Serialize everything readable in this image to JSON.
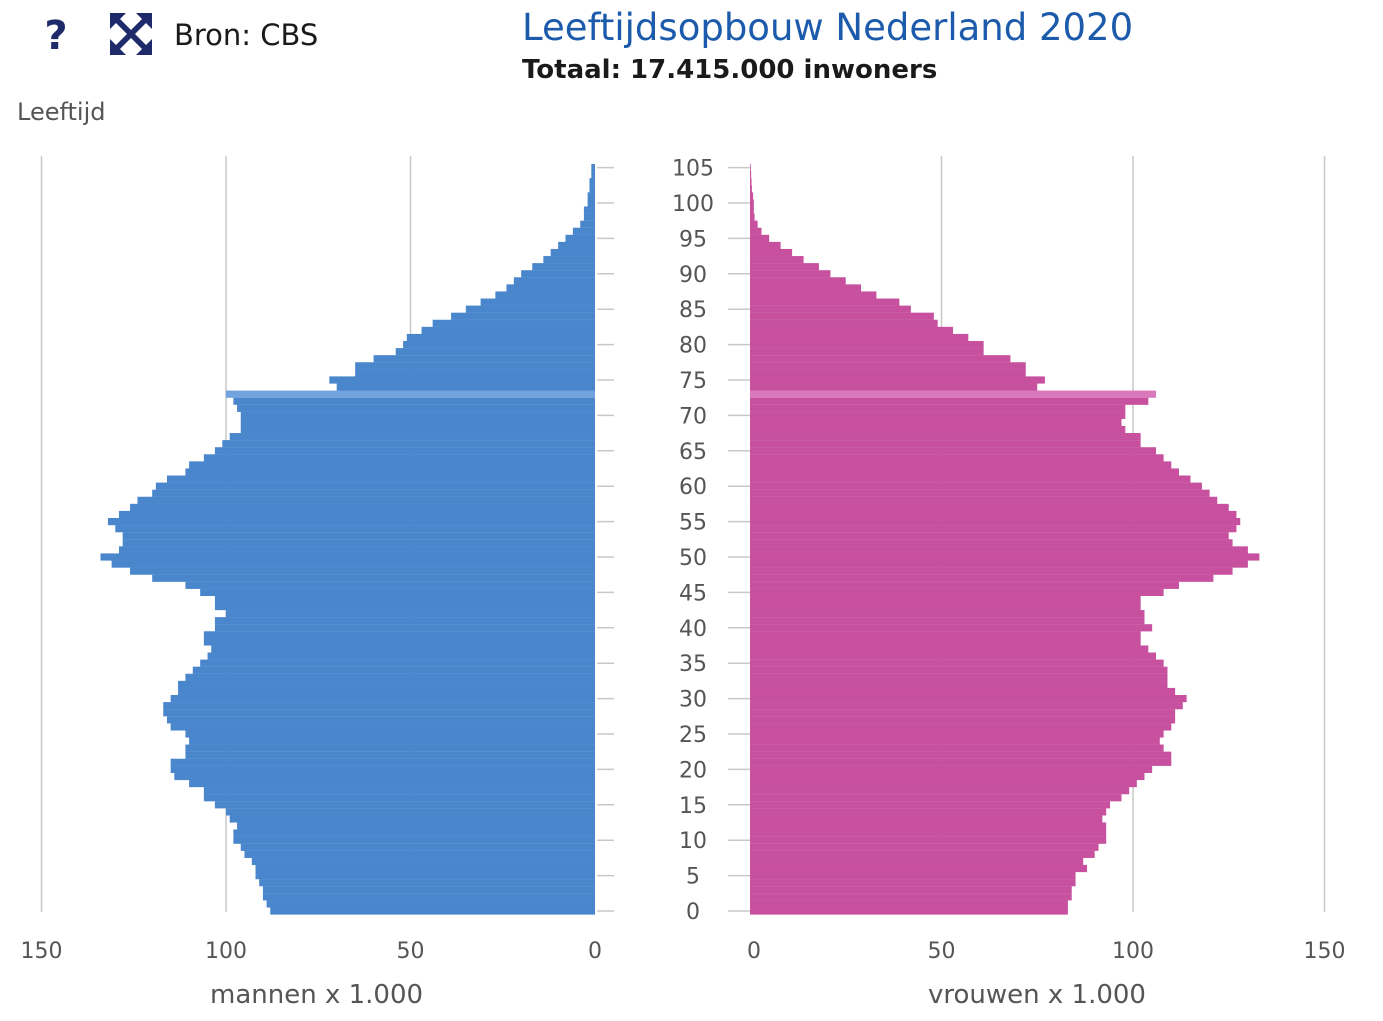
{
  "header": {
    "help_label": "?",
    "expand_icon": "expand-arrows-icon",
    "source": "Bron: CBS",
    "title": "Leeftijdsopbouw Nederland 2020",
    "subtitle": "Totaal: 17.415.000 inwoners"
  },
  "colors": {
    "men": "#4a86cc",
    "men_highlight": "#72a3df",
    "women": "#c7519f",
    "women_highlight": "#da79bb",
    "title": "#1c5bab",
    "grid": "#c8c8c8"
  },
  "chart_data": {
    "type": "bar",
    "orientation": "horizontal-population-pyramid",
    "title": "Leeftijdsopbouw Nederland 2020",
    "subtitle": "Totaal: 17.415.000 inwoners",
    "ylabel": "Leeftijd",
    "xlabel_left": "mannen x 1.000",
    "xlabel_right": "vrouwen x 1.000",
    "xlim": [
      0,
      150
    ],
    "x_ticks": [
      0,
      50,
      100,
      150
    ],
    "y_ticks": [
      0,
      5,
      10,
      15,
      20,
      25,
      30,
      35,
      40,
      45,
      50,
      55,
      60,
      65,
      70,
      75,
      80,
      85,
      90,
      95,
      100,
      105
    ],
    "grid": true,
    "highlight_age": 73,
    "ages": [
      0,
      1,
      2,
      3,
      4,
      5,
      6,
      7,
      8,
      9,
      10,
      11,
      12,
      13,
      14,
      15,
      16,
      17,
      18,
      19,
      20,
      21,
      22,
      23,
      24,
      25,
      26,
      27,
      28,
      29,
      30,
      31,
      32,
      33,
      34,
      35,
      36,
      37,
      38,
      39,
      40,
      41,
      42,
      43,
      44,
      45,
      46,
      47,
      48,
      49,
      50,
      51,
      52,
      53,
      54,
      55,
      56,
      57,
      58,
      59,
      60,
      61,
      62,
      63,
      64,
      65,
      66,
      67,
      68,
      69,
      70,
      71,
      72,
      73,
      74,
      75,
      76,
      77,
      78,
      79,
      80,
      81,
      82,
      83,
      84,
      85,
      86,
      87,
      88,
      89,
      90,
      91,
      92,
      93,
      94,
      95,
      96,
      97,
      98,
      99,
      100,
      101,
      102,
      103,
      104,
      105
    ],
    "series": [
      {
        "name": "mannen",
        "values": [
          88,
          89,
          90,
          90,
          91,
          92,
          92,
          93,
          95,
          96,
          98,
          98,
          97,
          99,
          100,
          103,
          106,
          106,
          110,
          114,
          115,
          115,
          111,
          111,
          110,
          111,
          115,
          116,
          117,
          117,
          115,
          113,
          113,
          111,
          109,
          107,
          105,
          104,
          106,
          106,
          103,
          103,
          100,
          103,
          103,
          107,
          111,
          120,
          126,
          131,
          134,
          129,
          128,
          128,
          130,
          132,
          129,
          126,
          124,
          120,
          119,
          116,
          111,
          110,
          106,
          103,
          101,
          99,
          96,
          96,
          96,
          97,
          98,
          100,
          70,
          72,
          65,
          65,
          60,
          54,
          52,
          51,
          47,
          44,
          39,
          35,
          31,
          27,
          24,
          22,
          20,
          17,
          14,
          12,
          10,
          8,
          6,
          4,
          3,
          3,
          2,
          2,
          1.5,
          1.5,
          1,
          1
        ]
      },
      {
        "name": "vrouwen",
        "values": [
          83,
          83,
          84,
          84,
          85,
          85,
          88,
          87,
          90,
          91,
          93,
          93,
          93,
          92,
          93,
          94,
          97,
          99,
          101,
          103,
          105,
          110,
          110,
          108,
          107,
          108,
          110,
          111,
          111,
          113,
          114,
          111,
          109,
          109,
          109,
          108,
          106,
          104,
          102,
          102,
          105,
          103,
          103,
          102,
          102,
          108,
          112,
          121,
          126,
          130,
          133,
          130,
          126,
          125,
          127,
          128,
          127,
          125,
          122,
          120,
          118,
          115,
          112,
          110,
          108,
          106,
          102,
          102,
          98,
          97,
          98,
          98,
          104,
          106,
          75,
          77,
          72,
          72,
          68,
          61,
          61,
          57,
          53,
          49,
          48,
          42,
          39,
          33,
          29,
          25,
          21,
          18,
          14,
          11,
          8,
          5,
          3,
          2,
          1.2,
          1,
          1,
          0.8,
          0.5,
          0.4,
          0.3,
          0.2
        ]
      }
    ]
  }
}
